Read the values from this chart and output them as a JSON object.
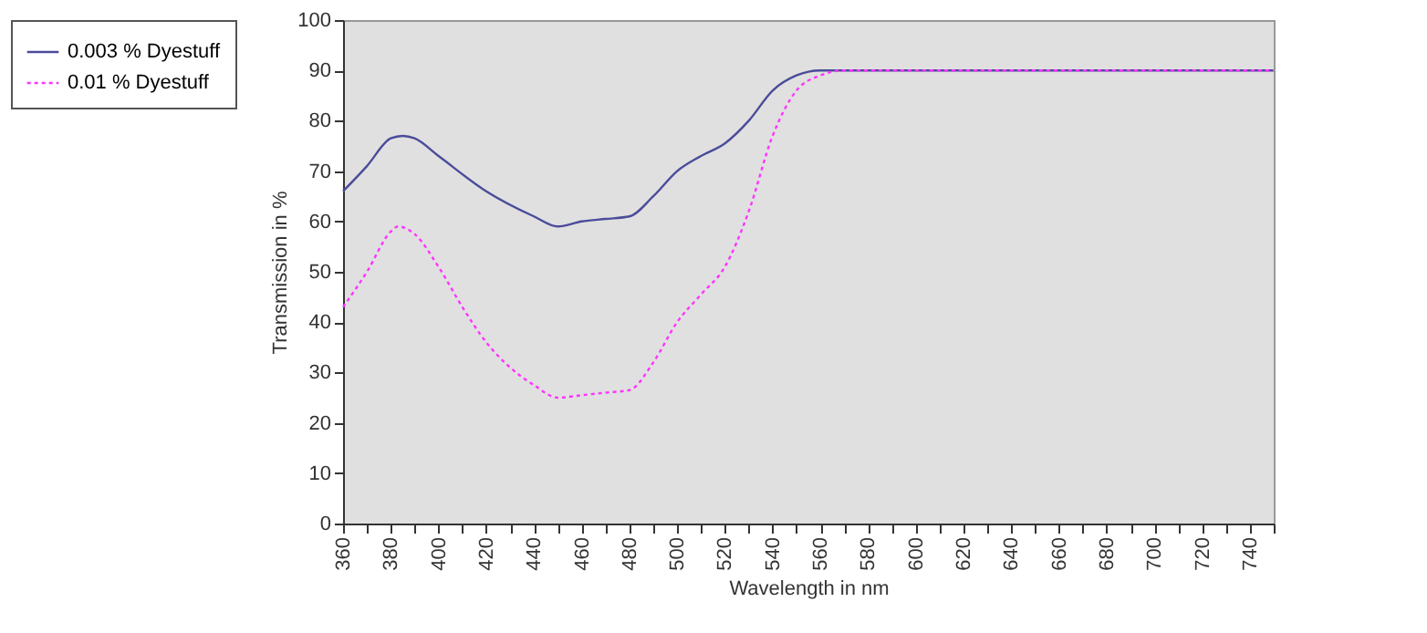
{
  "chart_data": {
    "type": "line",
    "xlabel": "Wavelength  in nm",
    "ylabel": "Transmission in %",
    "xlim": [
      360,
      750
    ],
    "ylim": [
      0,
      100
    ],
    "xticks": [
      360,
      {
        "value": 370,
        "label": null
      },
      380,
      {
        "value": 390,
        "label": null
      },
      400,
      {
        "value": 410,
        "label": null
      },
      420,
      {
        "value": 430,
        "label": null
      },
      440,
      {
        "value": 450,
        "label": null
      },
      460,
      {
        "value": 470,
        "label": null
      },
      480,
      {
        "value": 490,
        "label": null
      },
      500,
      {
        "value": 510,
        "label": null
      },
      520,
      {
        "value": 530,
        "label": null
      },
      540,
      {
        "value": 550,
        "label": null
      },
      560,
      {
        "value": 570,
        "label": null
      },
      580,
      {
        "value": 590,
        "label": null
      },
      600,
      {
        "value": 610,
        "label": null
      },
      620,
      {
        "value": 630,
        "label": null
      },
      640,
      {
        "value": 650,
        "label": null
      },
      660,
      {
        "value": 670,
        "label": null
      },
      680,
      {
        "value": 690,
        "label": null
      },
      700,
      {
        "value": 710,
        "label": null
      },
      720,
      {
        "value": 730,
        "label": null
      },
      740,
      {
        "value": 750,
        "label": null
      }
    ],
    "yticks": [
      0,
      10,
      20,
      30,
      40,
      50,
      60,
      70,
      80,
      90,
      100
    ],
    "grid": false,
    "legend": "top left",
    "marker": "none",
    "series": [
      {
        "name": "0.003 % Dyestuff",
        "color": "#4b4b9b",
        "line_style": "solid",
        "x": [
          360,
          370,
          380,
          385,
          390,
          400,
          420,
          440,
          450,
          460,
          470,
          480,
          490,
          500,
          510,
          520,
          530,
          540,
          550,
          560,
          580,
          650,
          750
        ],
        "values": [
          66,
          71,
          76.5,
          77,
          76.5,
          73,
          66,
          61,
          59,
          60,
          60.5,
          61,
          65,
          70,
          73,
          75.5,
          80,
          86,
          89,
          90,
          90,
          90,
          90
        ]
      },
      {
        "name": "0.01 % Dyestuff",
        "color": "#ff33ff",
        "line_style": "dotted",
        "x": [
          360,
          370,
          380,
          383,
          390,
          400,
          410,
          420,
          430,
          440,
          450,
          460,
          470,
          480,
          490,
          500,
          510,
          520,
          530,
          540,
          550,
          560,
          570,
          650,
          750
        ],
        "values": [
          43,
          50,
          58,
          59,
          57.5,
          51,
          43,
          36,
          31,
          27.5,
          25,
          25.5,
          26,
          26.5,
          32,
          40,
          45.5,
          51,
          62,
          77,
          86,
          89,
          90,
          90,
          90
        ]
      }
    ]
  }
}
